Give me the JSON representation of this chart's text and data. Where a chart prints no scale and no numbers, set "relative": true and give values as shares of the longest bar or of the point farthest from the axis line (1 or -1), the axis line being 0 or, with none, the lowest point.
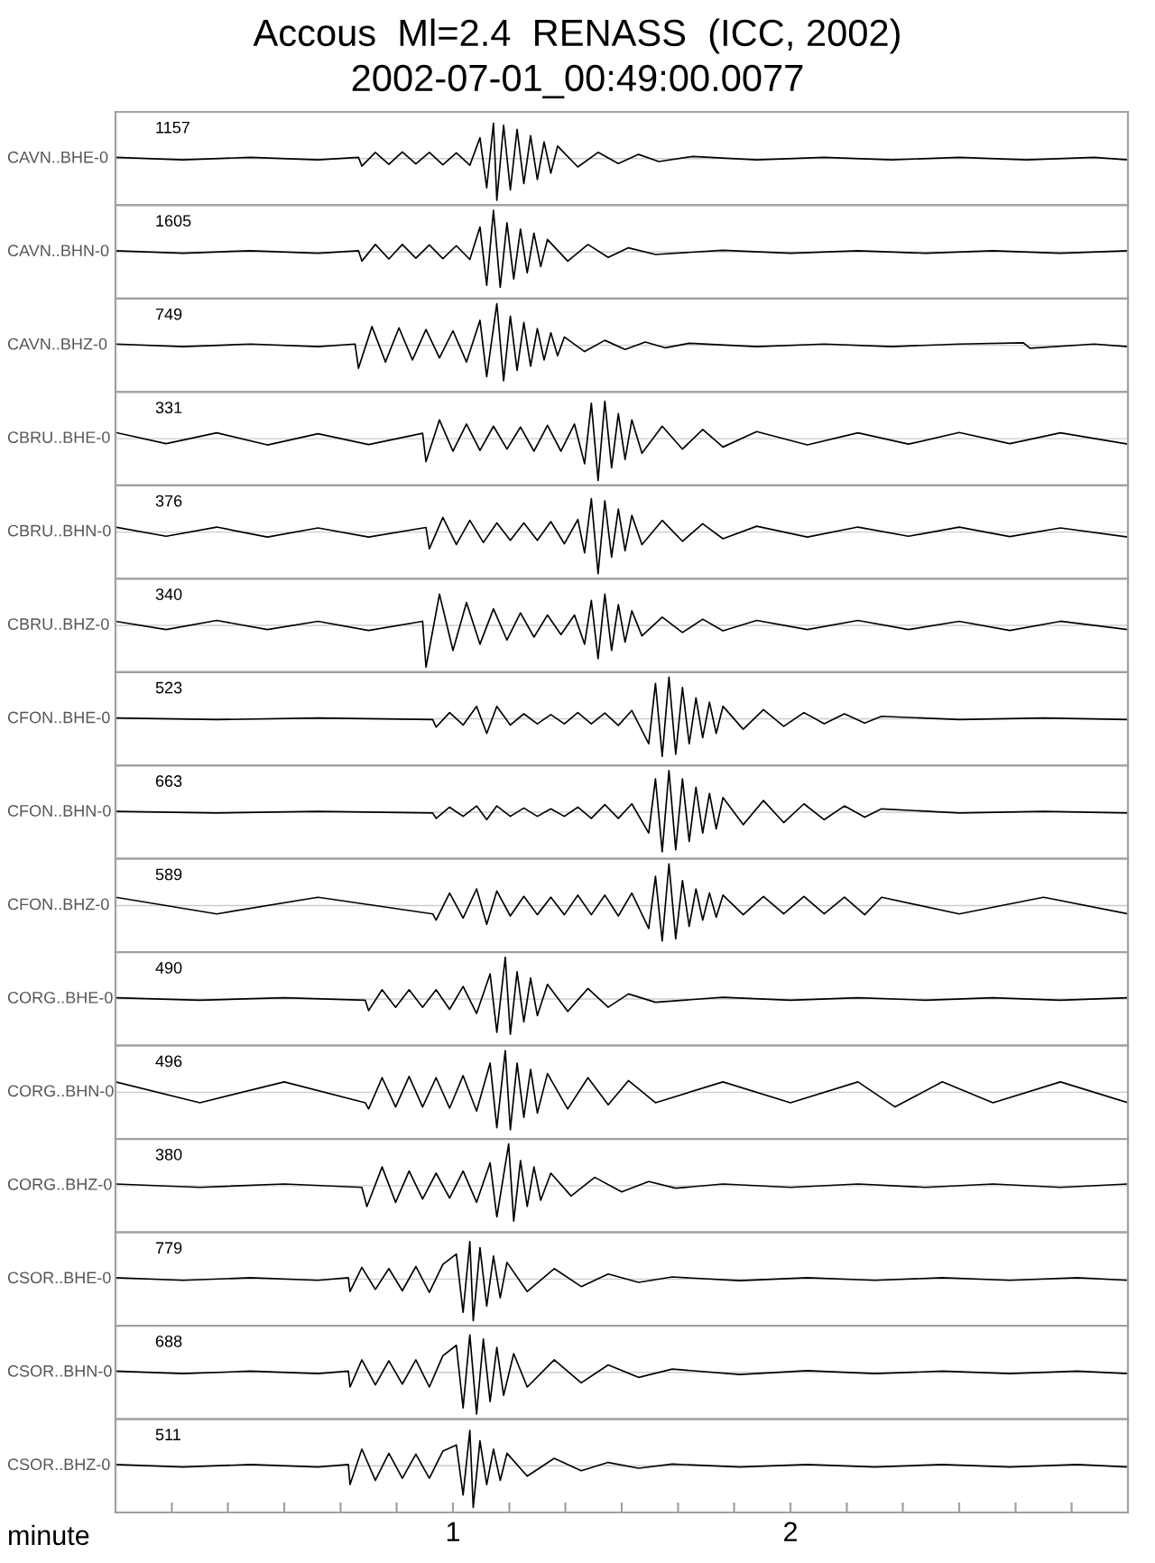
{
  "chart_data": [
    {
      "type": "line",
      "relative": true,
      "title": "Accous  Ml=2.4  RENASS  (ICC, 2002)",
      "subtitle": "2002-07-01_00:49:00.0077",
      "ylabel": "CAVN..BHE-0",
      "annotations": [
        "1157"
      ],
      "xlim": [
        0,
        3
      ],
      "tick_labels": false,
      "color": "#000000",
      "x": [
        0,
        0.2,
        0.4,
        0.6,
        0.72,
        0.73,
        0.77,
        0.81,
        0.85,
        0.89,
        0.93,
        0.97,
        1.01,
        1.05,
        1.08,
        1.1,
        1.12,
        1.13,
        1.15,
        1.17,
        1.19,
        1.21,
        1.23,
        1.25,
        1.27,
        1.29,
        1.31,
        1.37,
        1.43,
        1.49,
        1.55,
        1.61,
        1.71,
        1.9,
        2.1,
        2.3,
        2.5,
        2.7,
        2.9,
        3.0
      ],
      "values": [
        0.03,
        -0.03,
        0.03,
        -0.03,
        0.03,
        -0.18,
        0.15,
        -0.14,
        0.16,
        -0.13,
        0.15,
        -0.15,
        0.14,
        -0.16,
        0.5,
        -0.7,
        0.85,
        -1,
        0.8,
        -0.75,
        0.7,
        -0.6,
        0.55,
        -0.5,
        0.4,
        -0.35,
        0.3,
        -0.2,
        0.15,
        -0.12,
        0.1,
        -0.07,
        0.05,
        -0.03,
        0.03,
        -0.03,
        0.03,
        -0.03,
        0.03,
        -0.03
      ]
    },
    {
      "type": "line",
      "relative": true,
      "ylabel": "CAVN..BHN-0",
      "annotations": [
        "1605"
      ],
      "xlim": [
        0,
        3
      ],
      "tick_labels": false,
      "color": "#000000",
      "x": [
        0,
        0.2,
        0.4,
        0.6,
        0.72,
        0.73,
        0.77,
        0.81,
        0.85,
        0.89,
        0.93,
        0.97,
        1.01,
        1.05,
        1.08,
        1.1,
        1.12,
        1.14,
        1.16,
        1.18,
        1.2,
        1.22,
        1.24,
        1.26,
        1.28,
        1.34,
        1.4,
        1.46,
        1.52,
        1.6,
        1.8,
        2.0,
        2.2,
        2.4,
        2.6,
        2.8,
        3.0
      ],
      "values": [
        0.03,
        -0.03,
        0.03,
        -0.03,
        0.03,
        -0.22,
        0.18,
        -0.17,
        0.18,
        -0.15,
        0.17,
        -0.16,
        0.15,
        -0.18,
        0.6,
        -0.8,
        1,
        -0.85,
        0.7,
        -0.65,
        0.55,
        -0.5,
        0.45,
        -0.35,
        0.3,
        -0.22,
        0.18,
        -0.13,
        0.1,
        -0.06,
        0.04,
        -0.03,
        0.03,
        -0.03,
        0.03,
        -0.03,
        0.03
      ]
    },
    {
      "type": "line",
      "relative": true,
      "ylabel": "CAVN..BHZ-0",
      "annotations": [
        "749"
      ],
      "xlim": [
        0,
        3
      ],
      "tick_labels": false,
      "color": "#000000",
      "x": [
        0,
        0.2,
        0.4,
        0.6,
        0.71,
        0.72,
        0.76,
        0.8,
        0.84,
        0.88,
        0.92,
        0.96,
        1.0,
        1.04,
        1.08,
        1.1,
        1.13,
        1.15,
        1.17,
        1.19,
        1.21,
        1.23,
        1.25,
        1.27,
        1.29,
        1.31,
        1.33,
        1.39,
        1.45,
        1.51,
        1.57,
        1.63,
        1.7,
        1.9,
        2.1,
        2.3,
        2.5,
        2.69,
        2.71,
        2.9,
        3.0
      ],
      "values": [
        0.03,
        -0.03,
        0.03,
        -0.03,
        0.03,
        -0.55,
        0.45,
        -0.4,
        0.42,
        -0.35,
        0.38,
        -0.3,
        0.35,
        -0.4,
        0.6,
        -0.75,
        1,
        -0.85,
        0.7,
        -0.6,
        0.55,
        -0.5,
        0.4,
        -0.35,
        0.3,
        -0.25,
        0.2,
        -0.15,
        0.12,
        -0.1,
        0.08,
        -0.06,
        0.05,
        -0.03,
        0.03,
        -0.03,
        0.03,
        0.06,
        -0.07,
        0.03,
        -0.03
      ]
    },
    {
      "type": "line",
      "relative": true,
      "ylabel": "CBRU..BHE-0",
      "annotations": [
        "331"
      ],
      "xlim": [
        0,
        3
      ],
      "tick_labels": false,
      "color": "#000000",
      "x": [
        0,
        0.15,
        0.3,
        0.45,
        0.6,
        0.75,
        0.91,
        0.92,
        0.96,
        1.0,
        1.04,
        1.08,
        1.12,
        1.16,
        1.2,
        1.24,
        1.28,
        1.32,
        1.36,
        1.39,
        1.41,
        1.43,
        1.45,
        1.47,
        1.49,
        1.51,
        1.53,
        1.56,
        1.62,
        1.68,
        1.74,
        1.8,
        1.9,
        2.05,
        2.2,
        2.35,
        2.5,
        2.65,
        2.8,
        3.0
      ],
      "values": [
        0.15,
        -0.12,
        0.14,
        -0.15,
        0.12,
        -0.14,
        0.13,
        -0.55,
        0.45,
        -0.3,
        0.35,
        -0.28,
        0.3,
        -0.25,
        0.28,
        -0.3,
        0.32,
        -0.3,
        0.35,
        -0.6,
        0.85,
        -1,
        0.9,
        -0.7,
        0.6,
        -0.5,
        0.45,
        -0.35,
        0.3,
        -0.25,
        0.22,
        -0.2,
        0.17,
        -0.15,
        0.14,
        -0.13,
        0.15,
        -0.12,
        0.14,
        -0.13
      ]
    },
    {
      "type": "line",
      "relative": true,
      "ylabel": "CBRU..BHN-0",
      "annotations": [
        "376"
      ],
      "xlim": [
        0,
        3
      ],
      "tick_labels": false,
      "color": "#000000",
      "x": [
        0,
        0.15,
        0.3,
        0.45,
        0.6,
        0.75,
        0.92,
        0.93,
        0.97,
        1.01,
        1.05,
        1.09,
        1.13,
        1.17,
        1.21,
        1.25,
        1.29,
        1.33,
        1.37,
        1.39,
        1.41,
        1.43,
        1.45,
        1.47,
        1.49,
        1.51,
        1.53,
        1.56,
        1.62,
        1.68,
        1.74,
        1.8,
        1.9,
        2.05,
        2.2,
        2.35,
        2.5,
        2.65,
        2.8,
        3.0
      ],
      "values": [
        0.12,
        -0.1,
        0.12,
        -0.12,
        0.1,
        -0.12,
        0.11,
        -0.4,
        0.35,
        -0.3,
        0.28,
        -0.25,
        0.22,
        -0.2,
        0.22,
        -0.2,
        0.25,
        -0.28,
        0.3,
        -0.5,
        0.8,
        -1,
        0.75,
        -0.6,
        0.55,
        -0.45,
        0.4,
        -0.3,
        0.28,
        -0.22,
        0.2,
        -0.16,
        0.14,
        -0.12,
        0.12,
        -0.1,
        0.12,
        -0.11,
        0.1,
        -0.12
      ]
    },
    {
      "type": "line",
      "relative": true,
      "ylabel": "CBRU..BHZ-0",
      "annotations": [
        "340"
      ],
      "xlim": [
        0,
        3
      ],
      "tick_labels": false,
      "color": "#000000",
      "x": [
        0,
        0.15,
        0.3,
        0.45,
        0.6,
        0.75,
        0.91,
        0.92,
        0.96,
        1.0,
        1.04,
        1.08,
        1.12,
        1.16,
        1.2,
        1.24,
        1.28,
        1.32,
        1.36,
        1.39,
        1.41,
        1.43,
        1.45,
        1.47,
        1.49,
        1.51,
        1.53,
        1.56,
        1.62,
        1.68,
        1.74,
        1.8,
        1.9,
        2.05,
        2.2,
        2.35,
        2.5,
        2.65,
        2.8,
        3.0
      ],
      "values": [
        0.1,
        -0.1,
        0.12,
        -0.1,
        0.1,
        -0.12,
        0.1,
        -1,
        0.75,
        -0.6,
        0.55,
        -0.45,
        0.4,
        -0.35,
        0.3,
        -0.28,
        0.25,
        -0.22,
        0.25,
        -0.45,
        0.6,
        -0.8,
        0.75,
        -0.6,
        0.5,
        -0.4,
        0.35,
        -0.25,
        0.2,
        -0.17,
        0.15,
        -0.13,
        0.12,
        -0.1,
        0.12,
        -0.1,
        0.1,
        -0.12,
        0.1,
        -0.1
      ]
    },
    {
      "type": "line",
      "relative": true,
      "ylabel": "CFON..BHE-0",
      "annotations": [
        "523"
      ],
      "xlim": [
        0,
        3
      ],
      "tick_labels": false,
      "color": "#000000",
      "x": [
        0,
        0.3,
        0.6,
        0.94,
        0.95,
        0.99,
        1.03,
        1.07,
        1.1,
        1.13,
        1.17,
        1.21,
        1.25,
        1.29,
        1.33,
        1.37,
        1.41,
        1.45,
        1.49,
        1.53,
        1.58,
        1.6,
        1.62,
        1.64,
        1.66,
        1.68,
        1.7,
        1.72,
        1.74,
        1.76,
        1.78,
        1.8,
        1.86,
        1.92,
        1.98,
        2.04,
        2.1,
        2.16,
        2.22,
        2.27,
        2.5,
        2.75,
        3.0
      ],
      "values": [
        0.02,
        -0.02,
        0.02,
        -0.02,
        -0.2,
        0.15,
        -0.15,
        0.3,
        -0.35,
        0.3,
        -0.15,
        0.12,
        -0.12,
        0.1,
        -0.12,
        0.15,
        -0.12,
        0.14,
        -0.16,
        0.2,
        -0.6,
        0.85,
        -0.9,
        1,
        -0.85,
        0.75,
        -0.6,
        0.5,
        -0.45,
        0.4,
        -0.35,
        0.3,
        -0.25,
        0.22,
        -0.18,
        0.15,
        -0.12,
        0.12,
        -0.1,
        0.06,
        -0.02,
        0.02,
        -0.02
      ]
    },
    {
      "type": "line",
      "relative": true,
      "ylabel": "CFON..BHN-0",
      "annotations": [
        "663"
      ],
      "xlim": [
        0,
        3
      ],
      "tick_labels": false,
      "color": "#000000",
      "x": [
        0,
        0.3,
        0.6,
        0.94,
        0.95,
        0.99,
        1.03,
        1.07,
        1.1,
        1.13,
        1.17,
        1.21,
        1.25,
        1.29,
        1.33,
        1.37,
        1.41,
        1.45,
        1.49,
        1.53,
        1.58,
        1.6,
        1.62,
        1.64,
        1.66,
        1.68,
        1.7,
        1.72,
        1.74,
        1.76,
        1.78,
        1.8,
        1.86,
        1.92,
        1.98,
        2.04,
        2.1,
        2.16,
        2.22,
        2.27,
        2.5,
        2.75,
        3.0
      ],
      "values": [
        0.02,
        -0.02,
        0.02,
        -0.02,
        -0.15,
        0.12,
        -0.1,
        0.15,
        -0.18,
        0.15,
        -0.1,
        0.1,
        -0.1,
        0.08,
        -0.1,
        0.12,
        -0.15,
        0.18,
        -0.15,
        0.2,
        -0.5,
        0.8,
        -0.95,
        1,
        -0.9,
        0.8,
        -0.7,
        0.6,
        -0.5,
        0.45,
        -0.4,
        0.35,
        -0.3,
        0.28,
        -0.25,
        0.2,
        -0.18,
        0.15,
        -0.12,
        0.08,
        -0.02,
        0.02,
        -0.02
      ]
    },
    {
      "type": "line",
      "relative": true,
      "ylabel": "CFON..BHZ-0",
      "annotations": [
        "589"
      ],
      "xlim": [
        0,
        3
      ],
      "tick_labels": false,
      "color": "#000000",
      "x": [
        0,
        0.3,
        0.6,
        0.94,
        0.95,
        0.99,
        1.03,
        1.07,
        1.1,
        1.13,
        1.17,
        1.21,
        1.25,
        1.29,
        1.33,
        1.37,
        1.41,
        1.45,
        1.49,
        1.53,
        1.58,
        1.6,
        1.62,
        1.64,
        1.66,
        1.68,
        1.7,
        1.72,
        1.74,
        1.76,
        1.78,
        1.8,
        1.86,
        1.92,
        1.98,
        2.04,
        2.1,
        2.16,
        2.22,
        2.27,
        2.5,
        2.75,
        3.0
      ],
      "values": [
        0.2,
        -0.2,
        0.2,
        -0.2,
        -0.35,
        0.3,
        -0.3,
        0.4,
        -0.45,
        0.35,
        -0.25,
        0.22,
        -0.22,
        0.2,
        -0.22,
        0.25,
        -0.22,
        0.25,
        -0.25,
        0.3,
        -0.55,
        0.7,
        -0.85,
        1,
        -0.8,
        0.6,
        -0.5,
        0.4,
        -0.35,
        0.3,
        -0.28,
        0.25,
        -0.22,
        0.22,
        -0.2,
        0.22,
        -0.2,
        0.2,
        -0.22,
        0.2,
        -0.2,
        0.2,
        -0.2
      ]
    },
    {
      "type": "line",
      "relative": true,
      "ylabel": "CORG..BHE-0",
      "annotations": [
        "490"
      ],
      "xlim": [
        0,
        3
      ],
      "tick_labels": false,
      "color": "#000000",
      "x": [
        0,
        0.25,
        0.5,
        0.74,
        0.75,
        0.79,
        0.83,
        0.87,
        0.91,
        0.95,
        0.99,
        1.03,
        1.07,
        1.11,
        1.13,
        1.155,
        1.17,
        1.19,
        1.21,
        1.23,
        1.25,
        1.28,
        1.34,
        1.4,
        1.46,
        1.52,
        1.6,
        1.8,
        2.0,
        2.2,
        2.4,
        2.6,
        2.8,
        3.0
      ],
      "values": [
        0.03,
        -0.03,
        0.03,
        -0.03,
        -0.28,
        0.22,
        -0.2,
        0.22,
        -0.2,
        0.22,
        -0.25,
        0.3,
        -0.35,
        0.6,
        -0.8,
        1,
        -0.85,
        0.65,
        -0.55,
        0.5,
        -0.4,
        0.35,
        -0.3,
        0.25,
        -0.2,
        0.12,
        -0.08,
        0.04,
        -0.03,
        0.03,
        -0.03,
        0.03,
        -0.03,
        0.03
      ]
    },
    {
      "type": "line",
      "relative": true,
      "ylabel": "CORG..BHN-0",
      "annotations": [
        "496"
      ],
      "xlim": [
        0,
        3
      ],
      "tick_labels": false,
      "color": "#000000",
      "x": [
        0,
        0.25,
        0.5,
        0.74,
        0.75,
        0.79,
        0.83,
        0.87,
        0.91,
        0.95,
        0.99,
        1.03,
        1.07,
        1.11,
        1.13,
        1.155,
        1.17,
        1.19,
        1.21,
        1.23,
        1.25,
        1.28,
        1.34,
        1.4,
        1.46,
        1.52,
        1.6,
        1.8,
        2.0,
        2.2,
        2.31,
        2.45,
        2.6,
        2.8,
        3.0
      ],
      "values": [
        0.25,
        -0.25,
        0.25,
        -0.25,
        -0.4,
        0.35,
        -0.35,
        0.38,
        -0.35,
        0.35,
        -0.38,
        0.4,
        -0.45,
        0.7,
        -0.85,
        1,
        -0.9,
        0.7,
        -0.6,
        0.55,
        -0.5,
        0.45,
        -0.4,
        0.35,
        -0.3,
        0.28,
        -0.25,
        0.25,
        -0.25,
        0.25,
        -0.35,
        0.25,
        -0.25,
        0.25,
        -0.25
      ]
    },
    {
      "type": "line",
      "relative": true,
      "ylabel": "CORG..BHZ-0",
      "annotations": [
        "380"
      ],
      "xlim": [
        0,
        3
      ],
      "tick_labels": false,
      "color": "#000000",
      "x": [
        0,
        0.25,
        0.5,
        0.73,
        0.745,
        0.79,
        0.83,
        0.87,
        0.91,
        0.95,
        0.99,
        1.03,
        1.07,
        1.11,
        1.13,
        1.165,
        1.18,
        1.2,
        1.22,
        1.24,
        1.26,
        1.29,
        1.35,
        1.42,
        1.5,
        1.58,
        1.66,
        1.8,
        2.0,
        2.2,
        2.4,
        2.6,
        2.8,
        3.0
      ],
      "values": [
        0.04,
        -0.04,
        0.04,
        -0.04,
        -0.5,
        0.45,
        -0.4,
        0.35,
        -0.32,
        0.3,
        -0.3,
        0.35,
        -0.4,
        0.55,
        -0.75,
        1,
        -0.85,
        0.6,
        -0.5,
        0.45,
        -0.35,
        0.3,
        -0.25,
        0.2,
        -0.15,
        0.1,
        -0.06,
        0.04,
        -0.04,
        0.04,
        -0.04,
        0.04,
        -0.04,
        0.04
      ]
    },
    {
      "type": "line",
      "relative": true,
      "ylabel": "CSOR..BHE-0",
      "annotations": [
        "779"
      ],
      "xlim": [
        0,
        3
      ],
      "tick_labels": false,
      "color": "#000000",
      "x": [
        0,
        0.2,
        0.4,
        0.6,
        0.69,
        0.695,
        0.73,
        0.77,
        0.81,
        0.85,
        0.89,
        0.93,
        0.97,
        1.01,
        1.03,
        1.05,
        1.06,
        1.08,
        1.1,
        1.12,
        1.14,
        1.16,
        1.22,
        1.3,
        1.38,
        1.46,
        1.55,
        1.65,
        1.85,
        2.05,
        2.25,
        2.45,
        2.65,
        2.85,
        3.0
      ],
      "values": [
        0.03,
        -0.03,
        0.03,
        -0.03,
        0.03,
        -0.3,
        0.28,
        -0.25,
        0.25,
        -0.28,
        0.3,
        -0.32,
        0.35,
        0.6,
        -0.8,
        0.9,
        -1,
        0.75,
        -0.65,
        0.55,
        -0.45,
        0.4,
        -0.3,
        0.25,
        -0.18,
        0.12,
        -0.08,
        0.05,
        -0.04,
        0.03,
        -0.03,
        0.03,
        -0.03,
        0.03,
        -0.03
      ]
    },
    {
      "type": "line",
      "relative": true,
      "ylabel": "CSOR..BHN-0",
      "annotations": [
        "688"
      ],
      "xlim": [
        0,
        3
      ],
      "tick_labels": false,
      "color": "#000000",
      "x": [
        0,
        0.2,
        0.4,
        0.6,
        0.69,
        0.695,
        0.73,
        0.77,
        0.81,
        0.85,
        0.89,
        0.93,
        0.97,
        1.01,
        1.03,
        1.05,
        1.07,
        1.09,
        1.11,
        1.13,
        1.15,
        1.18,
        1.22,
        1.3,
        1.38,
        1.46,
        1.55,
        1.65,
        1.85,
        2.05,
        2.25,
        2.45,
        2.65,
        2.85,
        3.0
      ],
      "values": [
        0.03,
        -0.03,
        0.03,
        -0.03,
        0.03,
        -0.35,
        0.3,
        -0.3,
        0.28,
        -0.28,
        0.3,
        -0.35,
        0.4,
        0.65,
        -0.85,
        0.9,
        -1,
        0.8,
        -0.7,
        0.6,
        -0.55,
        0.45,
        -0.35,
        0.3,
        -0.25,
        0.18,
        -0.12,
        0.08,
        -0.05,
        0.04,
        -0.03,
        0.03,
        -0.03,
        0.03,
        -0.03
      ]
    },
    {
      "type": "line",
      "relative": true,
      "ylabel": "CSOR..BHZ-0",
      "annotations": [
        "511"
      ],
      "xlim": [
        0,
        3
      ],
      "tick_labels": "x",
      "color": "#000000",
      "xlabel": "minute",
      "xticks": [
        {
          "value": 0.167,
          "label": null
        },
        {
          "value": 0.333,
          "label": null
        },
        {
          "value": 0.5,
          "label": null
        },
        {
          "value": 0.667,
          "label": null
        },
        {
          "value": 0.833,
          "label": null
        },
        1,
        {
          "value": 1.167,
          "label": null
        },
        {
          "value": 1.333,
          "label": null
        },
        {
          "value": 1.5,
          "label": null
        },
        {
          "value": 1.667,
          "label": null
        },
        {
          "value": 1.833,
          "label": null
        },
        2,
        {
          "value": 2.167,
          "label": null
        },
        {
          "value": 2.333,
          "label": null
        },
        {
          "value": 2.5,
          "label": null
        },
        {
          "value": 2.667,
          "label": null
        },
        {
          "value": 2.833,
          "label": null
        }
      ],
      "x": [
        0,
        0.2,
        0.4,
        0.6,
        0.69,
        0.695,
        0.73,
        0.77,
        0.81,
        0.85,
        0.89,
        0.93,
        0.97,
        1.01,
        1.03,
        1.05,
        1.06,
        1.08,
        1.1,
        1.12,
        1.14,
        1.16,
        1.22,
        1.3,
        1.38,
        1.46,
        1.55,
        1.65,
        1.85,
        2.05,
        2.25,
        2.45,
        2.65,
        2.85,
        3.0
      ],
      "values": [
        0.03,
        -0.03,
        0.03,
        -0.03,
        0.03,
        -0.45,
        0.4,
        -0.35,
        0.3,
        -0.3,
        0.28,
        -0.3,
        0.35,
        0.5,
        -0.7,
        0.85,
        -1,
        0.6,
        -0.45,
        0.4,
        -0.35,
        0.3,
        -0.25,
        0.18,
        -0.12,
        0.08,
        -0.06,
        0.04,
        -0.03,
        0.03,
        -0.03,
        0.03,
        -0.03,
        0.03,
        -0.03
      ]
    }
  ]
}
